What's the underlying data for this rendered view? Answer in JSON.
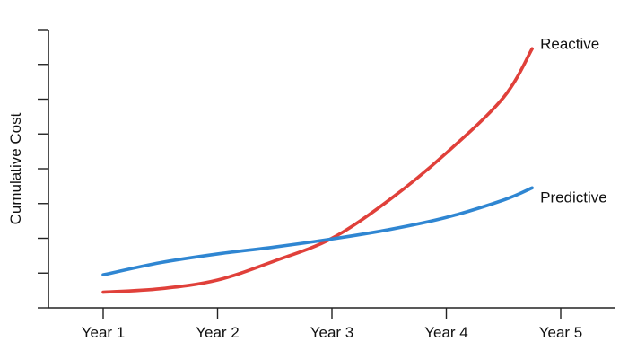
{
  "chart_data": {
    "type": "line",
    "title": "",
    "xlabel": "",
    "ylabel": "Cumulative Cost",
    "categories": [
      "Year 1",
      "Year 2",
      "Year 3",
      "Year 4",
      "Year 5"
    ],
    "x_range": [
      1,
      5
    ],
    "ylim": [
      0,
      8
    ],
    "y_ticks": [
      0,
      1,
      2,
      3,
      4,
      5,
      6,
      7,
      8
    ],
    "grid": false,
    "legend": "inline-end-labels",
    "series": [
      {
        "name": "Reactive",
        "color": "#e0403a",
        "x": [
          1,
          1.5,
          2,
          2.5,
          3,
          3.5,
          4,
          4.5,
          4.75
        ],
        "y": [
          0.45,
          0.55,
          0.8,
          1.35,
          2.0,
          3.1,
          4.45,
          6.05,
          7.45
        ]
      },
      {
        "name": "Predictive",
        "color": "#2f86d2",
        "x": [
          1,
          1.5,
          2,
          2.5,
          3,
          3.5,
          4,
          4.5,
          4.75
        ],
        "y": [
          0.95,
          1.3,
          1.55,
          1.75,
          1.98,
          2.25,
          2.6,
          3.1,
          3.45
        ]
      }
    ]
  }
}
